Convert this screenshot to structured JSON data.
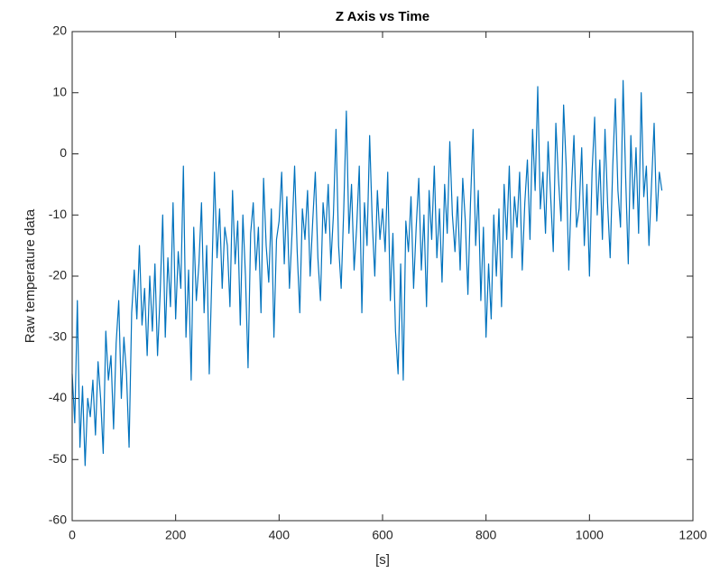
{
  "chart_data": {
    "type": "line",
    "title": "Z Axis vs Time",
    "xlabel": "[s]",
    "ylabel": "Raw temperature data",
    "color": "#0072bd",
    "xlim": [
      0,
      1200
    ],
    "xticks": [
      0,
      200,
      400,
      600,
      800,
      1000,
      1200
    ],
    "ylim": [
      -60,
      20
    ],
    "yticks": [
      -60,
      -50,
      -40,
      -30,
      -20,
      -10,
      0,
      10,
      20
    ],
    "x": [
      0,
      5,
      10,
      15,
      20,
      25,
      30,
      35,
      40,
      45,
      50,
      55,
      60,
      65,
      70,
      75,
      80,
      85,
      90,
      95,
      100,
      105,
      110,
      115,
      120,
      125,
      130,
      135,
      140,
      145,
      150,
      155,
      160,
      165,
      170,
      175,
      180,
      185,
      190,
      195,
      200,
      205,
      210,
      215,
      220,
      225,
      230,
      235,
      240,
      245,
      250,
      255,
      260,
      265,
      270,
      275,
      280,
      285,
      290,
      295,
      300,
      305,
      310,
      315,
      320,
      325,
      330,
      335,
      340,
      345,
      350,
      355,
      360,
      365,
      370,
      375,
      380,
      385,
      390,
      395,
      400,
      405,
      410,
      415,
      420,
      425,
      430,
      435,
      440,
      445,
      450,
      455,
      460,
      465,
      470,
      475,
      480,
      485,
      490,
      495,
      500,
      505,
      510,
      515,
      520,
      525,
      530,
      535,
      540,
      545,
      550,
      555,
      560,
      565,
      570,
      575,
      580,
      585,
      590,
      595,
      600,
      605,
      610,
      615,
      620,
      625,
      630,
      635,
      640,
      645,
      650,
      655,
      660,
      665,
      670,
      675,
      680,
      685,
      690,
      695,
      700,
      705,
      710,
      715,
      720,
      725,
      730,
      735,
      740,
      745,
      750,
      755,
      760,
      765,
      770,
      775,
      780,
      785,
      790,
      795,
      800,
      805,
      810,
      815,
      820,
      825,
      830,
      835,
      840,
      845,
      850,
      855,
      860,
      865,
      870,
      875,
      880,
      885,
      890,
      895,
      900,
      905,
      910,
      915,
      920,
      925,
      930,
      935,
      940,
      945,
      950,
      955,
      960,
      965,
      970,
      975,
      980,
      985,
      990,
      995,
      1000,
      1005,
      1010,
      1015,
      1020,
      1025,
      1030,
      1035,
      1040,
      1045,
      1050,
      1055,
      1060,
      1065,
      1070,
      1075,
      1080,
      1085,
      1090,
      1095,
      1100,
      1105,
      1110,
      1115,
      1120,
      1125,
      1130,
      1135,
      1140
    ],
    "values": [
      -36,
      -44,
      -24,
      -48,
      -38,
      -51,
      -40,
      -43,
      -37,
      -46,
      -34,
      -40,
      -49,
      -29,
      -37,
      -33,
      -45,
      -31,
      -24,
      -40,
      -30,
      -36,
      -48,
      -26,
      -19,
      -27,
      -15,
      -28,
      -22,
      -33,
      -20,
      -29,
      -18,
      -33,
      -23,
      -10,
      -30,
      -17,
      -25,
      -8,
      -27,
      -16,
      -22,
      -2,
      -30,
      -19,
      -37,
      -12,
      -24,
      -18,
      -8,
      -26,
      -15,
      -36,
      -20,
      -3,
      -17,
      -9,
      -22,
      -12,
      -15,
      -25,
      -6,
      -18,
      -11,
      -28,
      -10,
      -20,
      -35,
      -13,
      -8,
      -19,
      -12,
      -26,
      -4,
      -15,
      -21,
      -9,
      -30,
      -14,
      -11,
      -3,
      -18,
      -7,
      -22,
      -13,
      -2,
      -16,
      -26,
      -9,
      -14,
      -6,
      -20,
      -11,
      -3,
      -17,
      -24,
      -8,
      -13,
      -5,
      -18,
      -10,
      4,
      -15,
      -22,
      -9,
      7,
      -13,
      -5,
      -19,
      -12,
      -2,
      -26,
      -8,
      -15,
      3,
      -11,
      -20,
      -6,
      -14,
      -9,
      -16,
      -3,
      -24,
      -13,
      -29,
      -36,
      -18,
      -37,
      -11,
      -16,
      -7,
      -22,
      -12,
      -4,
      -19,
      -10,
      -25,
      -6,
      -14,
      -2,
      -17,
      -9,
      -21,
      -5,
      -13,
      2,
      -10,
      -16,
      -7,
      -19,
      -4,
      -11,
      -23,
      -8,
      4,
      -15,
      -6,
      -24,
      -12,
      -30,
      -18,
      -27,
      -10,
      -20,
      -9,
      -25,
      -5,
      -14,
      -2,
      -17,
      -7,
      -12,
      -3,
      -19,
      -8,
      -1,
      -14,
      4,
      -6,
      11,
      -9,
      -3,
      -13,
      2,
      -7,
      -16,
      5,
      -4,
      -11,
      8,
      -2,
      -19,
      -6,
      3,
      -12,
      -9,
      1,
      -15,
      -5,
      -20,
      -3,
      6,
      -10,
      -1,
      -14,
      4,
      -8,
      -17,
      -2,
      9,
      -6,
      -12,
      12,
      -4,
      -18,
      3,
      -9,
      1,
      -13,
      10,
      -7,
      -2,
      -15,
      -5,
      5,
      -11,
      -3,
      -6
    ]
  }
}
